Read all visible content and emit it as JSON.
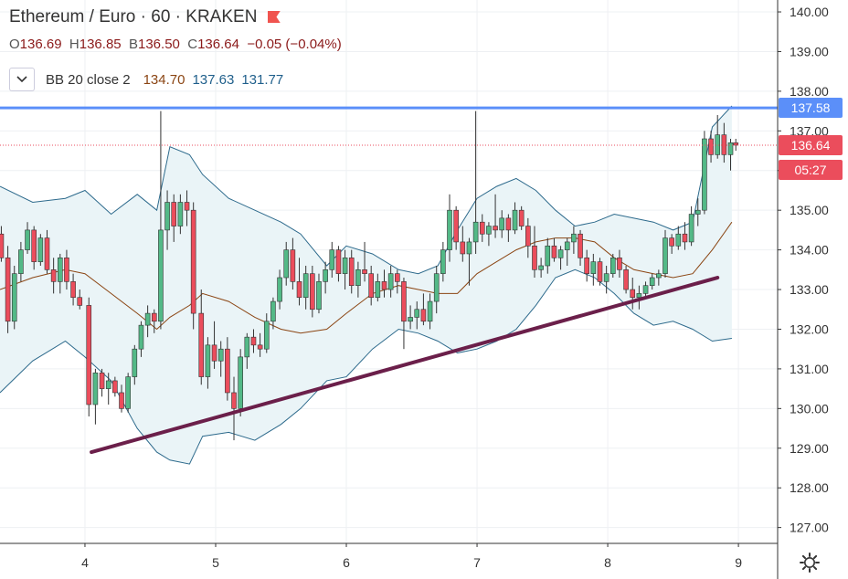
{
  "header": {
    "symbol": "Ethereum",
    "sep1": "/",
    "quote": "Euro",
    "dot1": "·",
    "interval": "60",
    "dot2": "·",
    "exchange": "KRAKEN",
    "flag_icon": "red-flag-icon"
  },
  "ohlc": {
    "o_label": "O",
    "o": "136.69",
    "h_label": "H",
    "h": "136.85",
    "b_label": "B",
    "b": "136.50",
    "c_label": "C",
    "c": "136.64",
    "change": "−0.05 (−0.04%)"
  },
  "indicator": {
    "toggle_icon": "chevron-down-icon",
    "name": "BB 20 close 2",
    "basis": "134.70",
    "upper": "137.63",
    "lower": "131.77",
    "basis_color": "#8b4513",
    "upper_color": "#1f5f8b",
    "lower_color": "#1f5f8b"
  },
  "badges": {
    "resistance": "137.58",
    "last_price": "136.64",
    "countdown": "05:27"
  },
  "colors": {
    "up": "#53b987",
    "down": "#eb4d5c",
    "wick": "#333333",
    "resistance_line": "#5b8ff9",
    "support_line": "#6b1f4a",
    "band_fill": "#eaf4f7",
    "band_line": "#2d6a8c",
    "basis_line": "#8b4513",
    "last_price_badge": "#eb4d5c"
  },
  "settings_icon": "gear-icon",
  "chart_data": {
    "type": "candlestick",
    "title": "Ethereum / Euro · 60 · KRAKEN",
    "x_ticks": [
      "4",
      "5",
      "6",
      "7",
      "8",
      "9"
    ],
    "y_ticks": [
      "140.00",
      "139.00",
      "138.00",
      "137.00",
      "136.00",
      "135.00",
      "134.00",
      "133.00",
      "132.00",
      "131.00",
      "130.00",
      "129.00",
      "128.00",
      "127.00"
    ],
    "ylim": [
      126.6,
      140.3
    ],
    "xlim": [
      3.35,
      9.3
    ],
    "grid": true,
    "resistance_level": 137.58,
    "last_price": 136.64,
    "support_trendline": [
      [
        4.05,
        128.9
      ],
      [
        8.84,
        133.3
      ]
    ],
    "candles": [
      [
        3.36,
        134.4,
        134.6,
        133.7,
        133.8
      ],
      [
        3.41,
        133.8,
        134.1,
        131.9,
        132.2
      ],
      [
        3.46,
        132.2,
        133.6,
        132.0,
        133.4
      ],
      [
        3.51,
        133.4,
        134.2,
        133.2,
        134.0
      ],
      [
        3.56,
        134.0,
        134.7,
        133.9,
        134.5
      ],
      [
        3.61,
        134.5,
        134.6,
        133.5,
        133.7
      ],
      [
        3.66,
        133.7,
        134.4,
        133.6,
        134.3
      ],
      [
        3.71,
        134.3,
        134.5,
        133.4,
        133.5
      ],
      [
        3.76,
        133.5,
        133.8,
        132.9,
        133.2
      ],
      [
        3.81,
        133.2,
        133.9,
        132.9,
        133.8
      ],
      [
        3.86,
        133.8,
        134.0,
        133.0,
        133.2
      ],
      [
        3.91,
        133.2,
        133.4,
        132.6,
        132.8
      ],
      [
        3.96,
        132.8,
        133.0,
        132.5,
        132.6
      ],
      [
        4.03,
        132.6,
        132.8,
        129.8,
        130.1
      ],
      [
        4.08,
        130.1,
        131.0,
        129.6,
        130.9
      ],
      [
        4.13,
        130.9,
        131.0,
        130.3,
        130.5
      ],
      [
        4.18,
        130.5,
        130.9,
        130.1,
        130.7
      ],
      [
        4.23,
        130.7,
        130.8,
        130.3,
        130.4
      ],
      [
        4.28,
        130.4,
        130.6,
        129.9,
        130.0
      ],
      [
        4.33,
        130.0,
        130.9,
        129.9,
        130.8
      ],
      [
        4.38,
        130.8,
        131.6,
        130.6,
        131.5
      ],
      [
        4.43,
        131.5,
        132.2,
        131.3,
        132.1
      ],
      [
        4.48,
        132.1,
        132.6,
        131.8,
        132.4
      ],
      [
        4.53,
        132.4,
        132.5,
        131.9,
        132.2
      ],
      [
        4.58,
        132.2,
        137.5,
        132.0,
        134.5
      ],
      [
        4.63,
        134.5,
        135.5,
        134.0,
        135.2
      ],
      [
        4.68,
        135.2,
        135.4,
        134.2,
        134.6
      ],
      [
        4.73,
        134.6,
        135.4,
        134.4,
        135.2
      ],
      [
        4.78,
        135.2,
        135.5,
        134.6,
        135.0
      ],
      [
        4.83,
        135.0,
        135.2,
        132.0,
        132.4
      ],
      [
        4.89,
        132.4,
        133.0,
        130.6,
        130.8
      ],
      [
        4.94,
        130.8,
        131.8,
        130.5,
        131.6
      ],
      [
        4.99,
        131.6,
        132.2,
        131.0,
        131.2
      ],
      [
        5.04,
        131.2,
        131.7,
        130.8,
        131.5
      ],
      [
        5.09,
        131.5,
        131.8,
        130.2,
        130.4
      ],
      [
        5.14,
        130.4,
        130.8,
        129.2,
        130.0
      ],
      [
        5.19,
        130.0,
        131.5,
        129.8,
        131.3
      ],
      [
        5.24,
        131.3,
        131.9,
        131.0,
        131.8
      ],
      [
        5.29,
        131.8,
        132.0,
        131.4,
        131.6
      ],
      [
        5.34,
        131.6,
        131.9,
        131.3,
        131.5
      ],
      [
        5.39,
        131.5,
        132.4,
        131.4,
        132.2
      ],
      [
        5.44,
        132.2,
        132.8,
        132.0,
        132.7
      ],
      [
        5.49,
        132.7,
        133.5,
        132.5,
        133.3
      ],
      [
        5.54,
        133.3,
        134.2,
        133.1,
        134.0
      ],
      [
        5.59,
        134.0,
        134.3,
        133.0,
        133.2
      ],
      [
        5.64,
        133.2,
        133.8,
        132.6,
        132.8
      ],
      [
        5.69,
        132.8,
        133.6,
        132.5,
        133.4
      ],
      [
        5.74,
        133.4,
        133.6,
        132.3,
        132.5
      ],
      [
        5.79,
        132.5,
        133.4,
        132.4,
        133.2
      ],
      [
        5.84,
        133.2,
        133.7,
        132.9,
        133.5
      ],
      [
        5.89,
        133.5,
        134.2,
        133.3,
        134.0
      ],
      [
        5.94,
        134.0,
        134.1,
        133.2,
        133.4
      ],
      [
        5.99,
        133.4,
        134.0,
        133.0,
        133.8
      ],
      [
        6.04,
        133.8,
        134.0,
        132.9,
        133.1
      ],
      [
        6.09,
        133.1,
        133.7,
        132.8,
        133.5
      ],
      [
        6.14,
        133.5,
        134.2,
        133.2,
        133.4
      ],
      [
        6.19,
        133.4,
        133.6,
        132.6,
        132.8
      ],
      [
        6.24,
        132.8,
        133.4,
        132.7,
        133.2
      ],
      [
        6.29,
        133.2,
        133.5,
        132.8,
        133.0
      ],
      [
        6.34,
        133.0,
        133.6,
        132.8,
        133.4
      ],
      [
        6.39,
        133.4,
        133.5,
        132.9,
        133.2
      ],
      [
        6.44,
        133.2,
        133.3,
        131.5,
        132.2
      ],
      [
        6.49,
        132.2,
        132.6,
        132.0,
        132.3
      ],
      [
        6.54,
        132.3,
        132.7,
        132.0,
        132.5
      ],
      [
        6.59,
        132.5,
        132.9,
        132.1,
        132.2
      ],
      [
        6.64,
        132.2,
        132.9,
        132.0,
        132.7
      ],
      [
        6.69,
        132.7,
        133.6,
        132.4,
        133.4
      ],
      [
        6.74,
        133.4,
        134.2,
        133.2,
        134.0
      ],
      [
        6.79,
        134.0,
        135.4,
        133.7,
        135.0
      ],
      [
        6.84,
        135.0,
        135.1,
        134.0,
        134.2
      ],
      [
        6.89,
        134.2,
        134.6,
        133.7,
        133.9
      ],
      [
        6.94,
        133.9,
        134.3,
        133.1,
        134.2
      ],
      [
        6.99,
        134.2,
        137.5,
        133.9,
        134.7
      ],
      [
        7.04,
        134.7,
        134.9,
        134.2,
        134.4
      ],
      [
        7.09,
        134.4,
        134.7,
        134.1,
        134.6
      ],
      [
        7.14,
        134.6,
        135.4,
        134.3,
        134.5
      ],
      [
        7.19,
        134.5,
        135.0,
        134.3,
        134.8
      ],
      [
        7.24,
        134.8,
        134.9,
        134.2,
        134.5
      ],
      [
        7.29,
        134.5,
        135.2,
        134.4,
        135.0
      ],
      [
        7.34,
        135.0,
        135.1,
        134.5,
        134.6
      ],
      [
        7.39,
        134.6,
        134.8,
        133.8,
        134.1
      ],
      [
        7.44,
        134.1,
        134.6,
        133.3,
        133.5
      ],
      [
        7.49,
        133.5,
        133.8,
        133.3,
        133.6
      ],
      [
        7.54,
        133.6,
        134.3,
        133.4,
        134.1
      ],
      [
        7.59,
        134.1,
        134.3,
        133.7,
        133.8
      ],
      [
        7.64,
        133.8,
        134.1,
        133.5,
        134.0
      ],
      [
        7.69,
        134.0,
        134.3,
        133.6,
        134.2
      ],
      [
        7.74,
        134.2,
        134.6,
        133.9,
        134.4
      ],
      [
        7.79,
        134.4,
        134.5,
        133.6,
        133.8
      ],
      [
        7.84,
        133.8,
        134.0,
        133.2,
        133.4
      ],
      [
        7.89,
        133.4,
        133.9,
        133.1,
        133.7
      ],
      [
        7.94,
        133.7,
        133.8,
        133.1,
        133.2
      ],
      [
        7.99,
        133.2,
        133.6,
        132.9,
        133.4
      ],
      [
        8.04,
        133.4,
        133.9,
        133.3,
        133.8
      ],
      [
        8.09,
        133.8,
        134.0,
        133.3,
        133.5
      ],
      [
        8.14,
        133.5,
        133.6,
        132.9,
        133.0
      ],
      [
        8.19,
        133.0,
        133.3,
        132.5,
        132.8
      ],
      [
        8.24,
        132.8,
        133.1,
        132.5,
        132.9
      ],
      [
        8.29,
        132.9,
        133.2,
        132.8,
        133.1
      ],
      [
        8.34,
        133.1,
        133.4,
        133.0,
        133.3
      ],
      [
        8.39,
        133.3,
        133.5,
        133.1,
        133.4
      ],
      [
        8.44,
        133.4,
        134.5,
        133.3,
        134.3
      ],
      [
        8.49,
        134.3,
        134.4,
        133.9,
        134.1
      ],
      [
        8.54,
        134.1,
        134.6,
        134.0,
        134.4
      ],
      [
        8.59,
        134.4,
        134.7,
        134.0,
        134.2
      ],
      [
        8.64,
        134.2,
        135.1,
        134.1,
        134.9
      ],
      [
        8.69,
        134.9,
        135.3,
        134.6,
        135.0
      ],
      [
        8.74,
        135.0,
        137.0,
        134.9,
        136.8
      ],
      [
        8.79,
        136.8,
        137.0,
        136.2,
        136.4
      ],
      [
        8.84,
        136.4,
        137.4,
        136.3,
        136.9
      ],
      [
        8.89,
        136.9,
        137.2,
        136.2,
        136.4
      ],
      [
        8.94,
        136.4,
        136.8,
        136.0,
        136.7
      ],
      [
        8.98,
        136.7,
        136.8,
        136.5,
        136.64
      ]
    ],
    "bb_upper": [
      [
        3.35,
        135.6
      ],
      [
        3.6,
        135.2
      ],
      [
        3.85,
        135.3
      ],
      [
        4.0,
        135.5
      ],
      [
        4.2,
        134.9
      ],
      [
        4.4,
        135.4
      ],
      [
        4.55,
        135.0
      ],
      [
        4.65,
        136.6
      ],
      [
        4.8,
        136.4
      ],
      [
        4.9,
        135.9
      ],
      [
        5.1,
        135.3
      ],
      [
        5.3,
        135.0
      ],
      [
        5.5,
        134.7
      ],
      [
        5.65,
        134.4
      ],
      [
        5.85,
        133.6
      ],
      [
        6.0,
        134.1
      ],
      [
        6.2,
        133.9
      ],
      [
        6.4,
        133.5
      ],
      [
        6.55,
        133.4
      ],
      [
        6.7,
        133.6
      ],
      [
        6.85,
        134.5
      ],
      [
        7.0,
        135.3
      ],
      [
        7.15,
        135.6
      ],
      [
        7.3,
        135.8
      ],
      [
        7.45,
        135.5
      ],
      [
        7.6,
        135.0
      ],
      [
        7.75,
        134.6
      ],
      [
        7.9,
        134.7
      ],
      [
        8.05,
        134.9
      ],
      [
        8.2,
        134.8
      ],
      [
        8.35,
        134.7
      ],
      [
        8.5,
        134.5
      ],
      [
        8.65,
        134.7
      ],
      [
        8.8,
        137.1
      ],
      [
        8.95,
        137.63
      ]
    ],
    "bb_basis": [
      [
        3.35,
        133.0
      ],
      [
        3.6,
        133.3
      ],
      [
        3.85,
        133.5
      ],
      [
        4.0,
        133.4
      ],
      [
        4.2,
        132.9
      ],
      [
        4.4,
        132.4
      ],
      [
        4.55,
        132.0
      ],
      [
        4.65,
        132.3
      ],
      [
        4.8,
        132.6
      ],
      [
        4.9,
        132.9
      ],
      [
        5.1,
        132.7
      ],
      [
        5.3,
        132.3
      ],
      [
        5.5,
        132.0
      ],
      [
        5.65,
        131.9
      ],
      [
        5.85,
        132.0
      ],
      [
        6.0,
        132.4
      ],
      [
        6.2,
        132.9
      ],
      [
        6.4,
        133.1
      ],
      [
        6.55,
        133.0
      ],
      [
        6.7,
        132.9
      ],
      [
        6.85,
        132.9
      ],
      [
        7.0,
        133.4
      ],
      [
        7.15,
        133.7
      ],
      [
        7.3,
        134.0
      ],
      [
        7.45,
        134.2
      ],
      [
        7.6,
        134.3
      ],
      [
        7.75,
        134.3
      ],
      [
        7.9,
        134.2
      ],
      [
        8.05,
        133.8
      ],
      [
        8.2,
        133.5
      ],
      [
        8.35,
        133.4
      ],
      [
        8.5,
        133.3
      ],
      [
        8.65,
        133.4
      ],
      [
        8.8,
        134.0
      ],
      [
        8.95,
        134.7
      ]
    ],
    "bb_lower": [
      [
        3.35,
        130.4
      ],
      [
        3.6,
        131.2
      ],
      [
        3.85,
        131.7
      ],
      [
        4.0,
        131.3
      ],
      [
        4.2,
        130.7
      ],
      [
        4.4,
        129.5
      ],
      [
        4.55,
        128.9
      ],
      [
        4.65,
        128.7
      ],
      [
        4.8,
        128.6
      ],
      [
        4.9,
        129.3
      ],
      [
        5.1,
        129.4
      ],
      [
        5.3,
        129.2
      ],
      [
        5.5,
        129.6
      ],
      [
        5.65,
        130.0
      ],
      [
        5.85,
        130.7
      ],
      [
        6.0,
        130.8
      ],
      [
        6.2,
        131.5
      ],
      [
        6.4,
        132.0
      ],
      [
        6.55,
        131.9
      ],
      [
        6.7,
        131.7
      ],
      [
        6.85,
        131.4
      ],
      [
        7.0,
        131.5
      ],
      [
        7.15,
        131.7
      ],
      [
        7.3,
        132.0
      ],
      [
        7.45,
        132.6
      ],
      [
        7.6,
        133.3
      ],
      [
        7.75,
        133.5
      ],
      [
        7.9,
        133.3
      ],
      [
        8.05,
        132.9
      ],
      [
        8.2,
        132.4
      ],
      [
        8.35,
        132.1
      ],
      [
        8.5,
        132.2
      ],
      [
        8.65,
        132.0
      ],
      [
        8.8,
        131.7
      ],
      [
        8.95,
        131.77
      ]
    ]
  }
}
